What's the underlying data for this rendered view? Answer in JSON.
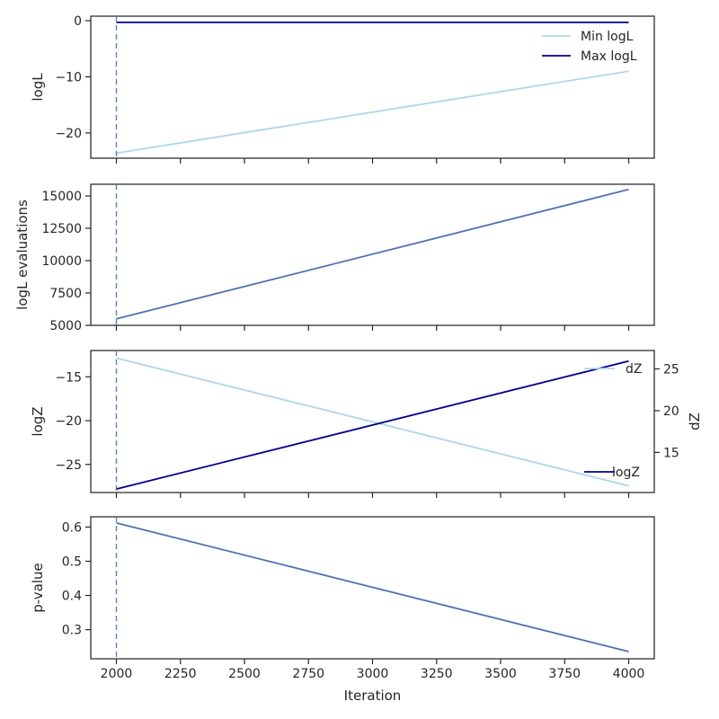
{
  "chart_data": [
    {
      "type": "line",
      "panel": "logL",
      "ylabel": "logL",
      "xlim": [
        1900,
        4100
      ],
      "ylim": [
        -24.5,
        0.8
      ],
      "yticks": [
        0,
        -10,
        -20
      ],
      "vline_x": 2000,
      "legend": "top-right",
      "series": [
        {
          "name": "Min logL",
          "color": "#add8e6",
          "x": [
            2000,
            4000
          ],
          "y": [
            -23.6,
            -9.0
          ]
        },
        {
          "name": "Max logL",
          "color": "#00008b",
          "x": [
            2000,
            4000
          ],
          "y": [
            -0.3,
            -0.3
          ]
        }
      ]
    },
    {
      "type": "line",
      "panel": "evaluations",
      "ylabel": "logL evaluations",
      "xlim": [
        1900,
        4100
      ],
      "ylim": [
        5000,
        15900
      ],
      "yticks": [
        5000,
        7500,
        10000,
        12500,
        15000
      ],
      "vline_x": 2000,
      "series": [
        {
          "color": "#4c72b0",
          "x": [
            2000,
            4000
          ],
          "y": [
            5500,
            15500
          ]
        }
      ]
    },
    {
      "type": "line",
      "panel": "logZ",
      "ylabel": "logZ",
      "y2label": "dZ",
      "xlim": [
        1900,
        4100
      ],
      "ylim": [
        -28.2,
        -12.0
      ],
      "yticks": [
        -15,
        -20,
        -25
      ],
      "y2lim": [
        10.2,
        27.2
      ],
      "y2ticks": [
        25,
        20,
        15
      ],
      "vline_x": 2000,
      "series": [
        {
          "name": "dZ",
          "axis": "right",
          "color": "#add8e6",
          "x": [
            2000,
            4000
          ],
          "y": [
            26.3,
            11.0
          ],
          "legend": "top-right"
        },
        {
          "name": "logZ",
          "axis": "left",
          "color": "#00008b",
          "x": [
            2000,
            4000
          ],
          "y": [
            -27.8,
            -13.2
          ],
          "legend": "bottom-right"
        }
      ]
    },
    {
      "type": "line",
      "panel": "pvalue",
      "ylabel": "p-value",
      "xlabel": "Iteration",
      "xlim": [
        1900,
        4100
      ],
      "ylim": [
        0.215,
        0.63
      ],
      "yticks": [
        0.6,
        0.5,
        0.4,
        0.3
      ],
      "xticks": [
        2000,
        2250,
        2500,
        2750,
        3000,
        3250,
        3500,
        3750,
        4000
      ],
      "vline_x": 2000,
      "series": [
        {
          "color": "#4c72b0",
          "x": [
            2000,
            4000
          ],
          "y": [
            0.612,
            0.236
          ]
        }
      ]
    }
  ]
}
